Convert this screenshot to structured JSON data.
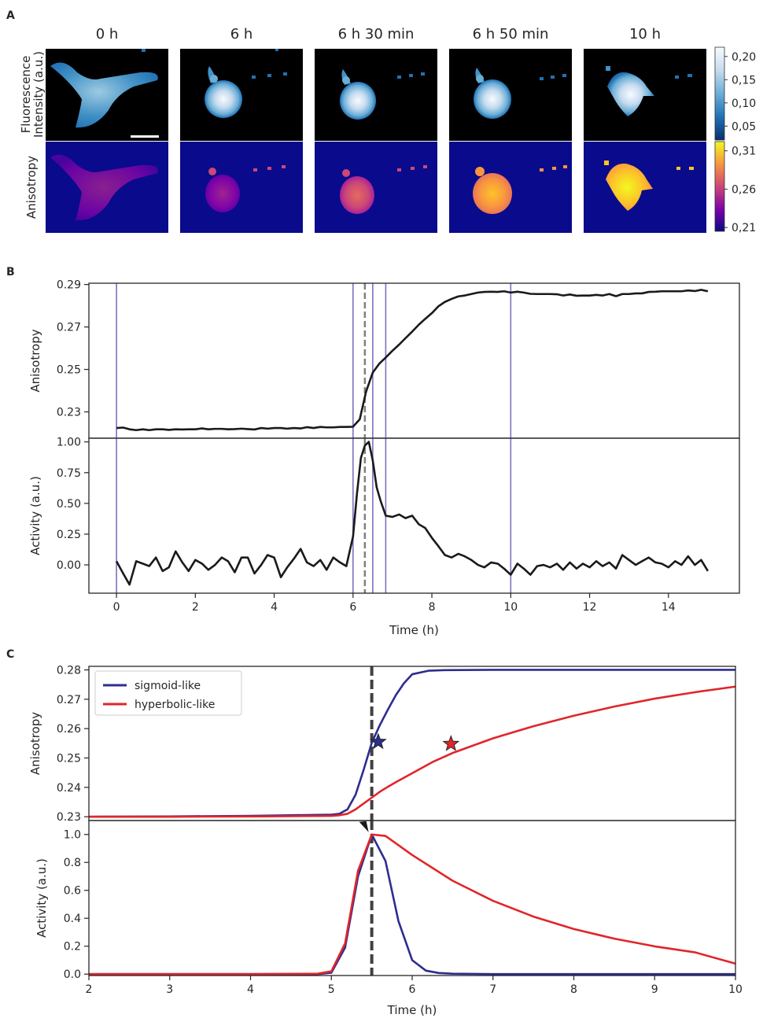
{
  "panels": {
    "a": "A",
    "b": "B",
    "c": "C"
  },
  "panel_a": {
    "time_labels": [
      "0 h",
      "6 h",
      "6 h 30 min",
      "6 h 50 min",
      "10 h"
    ],
    "row_labels": {
      "fluorescence": [
        "Fluorescence",
        "Intensity (a.u.)"
      ],
      "anisotropy": "Anisotropy"
    },
    "fluorescence_colorbar": {
      "ticks": [
        "0,20",
        "0,15",
        "0,10",
        "0,05"
      ],
      "values": [
        0.2,
        0.15,
        0.1,
        0.05
      ],
      "range": [
        0.02,
        0.22
      ],
      "colors": [
        "#08306b",
        "#2171b5",
        "#6baed6",
        "#c6dbef",
        "#f7fbff"
      ]
    },
    "anisotropy_colorbar": {
      "ticks": [
        "0,31",
        "0,26",
        "0,21"
      ],
      "values": [
        0.31,
        0.26,
        0.21
      ],
      "range": [
        0.205,
        0.322
      ],
      "colors": [
        "#0d0887",
        "#7e03a8",
        "#cc4778",
        "#f89540",
        "#f0f921"
      ]
    },
    "background_colors": {
      "fluorescence": "#000000",
      "anisotropy": "#0a0a8c"
    }
  },
  "chart_data": [
    {
      "id": "B-top",
      "type": "line",
      "ylabel": "Anisotropy",
      "xlim": [
        -0.7,
        15.8
      ],
      "ylim": [
        0.2176,
        0.2906
      ],
      "yticks": [
        0.23,
        0.25,
        0.27,
        0.29
      ],
      "ytick_labels": [
        "0.23",
        "0.25",
        "0.27",
        "0.29"
      ],
      "vlines": [
        0,
        6,
        6.5,
        6.83,
        10
      ],
      "dashed_vline": 6.3,
      "series": [
        {
          "color": "#1a1a1a",
          "x": [
            0,
            0.17,
            0.33,
            0.5,
            0.67,
            0.83,
            1,
            1.17,
            1.33,
            1.5,
            1.67,
            1.83,
            2,
            2.17,
            2.33,
            2.5,
            2.67,
            2.83,
            3,
            3.17,
            3.33,
            3.5,
            3.67,
            3.83,
            4,
            4.17,
            4.33,
            4.5,
            4.67,
            4.83,
            5,
            5.17,
            5.33,
            5.5,
            5.67,
            5.83,
            6,
            6.17,
            6.33,
            6.5,
            6.67,
            6.83,
            7,
            7.17,
            7.33,
            7.5,
            7.67,
            7.83,
            8,
            8.17,
            8.33,
            8.5,
            8.67,
            8.83,
            9,
            9.17,
            9.33,
            9.5,
            9.67,
            9.83,
            10,
            10.17,
            10.33,
            10.5,
            10.67,
            10.83,
            11,
            11.17,
            11.33,
            11.5,
            11.67,
            11.83,
            12,
            12.17,
            12.33,
            12.5,
            12.67,
            12.83,
            13,
            13.17,
            13.33,
            13.5,
            13.67,
            13.83,
            14,
            14.17,
            14.33,
            14.5,
            14.67,
            14.83,
            15
          ],
          "values": [
            0.2224,
            0.2226,
            0.2218,
            0.2214,
            0.2218,
            0.2214,
            0.2218,
            0.2218,
            0.2215,
            0.2218,
            0.2217,
            0.2218,
            0.2218,
            0.2222,
            0.2218,
            0.222,
            0.222,
            0.2218,
            0.2219,
            0.2221,
            0.2219,
            0.2217,
            0.2224,
            0.2221,
            0.2224,
            0.2224,
            0.2221,
            0.2224,
            0.2222,
            0.2228,
            0.2224,
            0.2229,
            0.2227,
            0.2227,
            0.2229,
            0.2229,
            0.223,
            0.2265,
            0.2395,
            0.2485,
            0.2528,
            0.2556,
            0.2588,
            0.2617,
            0.2647,
            0.2678,
            0.2711,
            0.2738,
            0.2765,
            0.2798,
            0.2818,
            0.2832,
            0.2844,
            0.2848,
            0.2855,
            0.2862,
            0.2865,
            0.2866,
            0.2865,
            0.2868,
            0.2862,
            0.2866,
            0.2862,
            0.2856,
            0.2855,
            0.2855,
            0.2855,
            0.2854,
            0.2848,
            0.2853,
            0.2847,
            0.2848,
            0.2848,
            0.2851,
            0.2848,
            0.2855,
            0.2845,
            0.2855,
            0.2855,
            0.2858,
            0.2858,
            0.2865,
            0.2866,
            0.2868,
            0.2868,
            0.2868,
            0.2868,
            0.2872,
            0.2869,
            0.2875,
            0.2868
          ]
        }
      ]
    },
    {
      "id": "B-bottom",
      "type": "line",
      "ylabel": "Activity (a.u.)",
      "xlabel": "Time (h)",
      "xlim": [
        -0.7,
        15.8
      ],
      "ylim": [
        -0.23,
        1.03
      ],
      "xticks": [
        0,
        2,
        4,
        6,
        8,
        10,
        12,
        14
      ],
      "xtick_labels": [
        "0",
        "2",
        "4",
        "6",
        "8",
        "10",
        "12",
        "14"
      ],
      "yticks": [
        0.0,
        0.25,
        0.5,
        0.75,
        1.0
      ],
      "ytick_labels": [
        "0.00",
        "0.25",
        "0.50",
        "0.75",
        "1.00"
      ],
      "vlines": [
        0,
        6,
        6.5,
        6.83,
        10
      ],
      "dashed_vline": 6.3,
      "series": [
        {
          "color": "#1a1a1a",
          "x": [
            0,
            0.17,
            0.33,
            0.5,
            0.67,
            0.83,
            1,
            1.17,
            1.33,
            1.5,
            1.67,
            1.83,
            2,
            2.17,
            2.33,
            2.5,
            2.67,
            2.83,
            3,
            3.17,
            3.33,
            3.5,
            3.67,
            3.83,
            4,
            4.17,
            4.33,
            4.5,
            4.67,
            4.83,
            5,
            5.17,
            5.33,
            5.5,
            5.67,
            5.83,
            6,
            6.1,
            6.2,
            6.3,
            6.4,
            6.5,
            6.6,
            6.7,
            6.83,
            7,
            7.17,
            7.33,
            7.5,
            7.67,
            7.83,
            8,
            8.17,
            8.33,
            8.5,
            8.67,
            8.83,
            9,
            9.17,
            9.33,
            9.5,
            9.67,
            9.83,
            10,
            10.17,
            10.33,
            10.5,
            10.67,
            10.83,
            11,
            11.17,
            11.33,
            11.5,
            11.67,
            11.83,
            12,
            12.17,
            12.33,
            12.5,
            12.67,
            12.83,
            13,
            13.17,
            13.33,
            13.5,
            13.67,
            13.83,
            14,
            14.17,
            14.33,
            14.5,
            14.67,
            14.83,
            15
          ],
          "values": [
            0.03,
            -0.07,
            -0.16,
            0.03,
            0.01,
            -0.01,
            0.06,
            -0.05,
            -0.02,
            0.11,
            0.02,
            -0.05,
            0.04,
            0.01,
            -0.04,
            0.0,
            0.06,
            0.03,
            -0.06,
            0.06,
            0.06,
            -0.07,
            0.0,
            0.08,
            0.06,
            -0.1,
            -0.02,
            0.05,
            0.13,
            0.02,
            -0.01,
            0.04,
            -0.04,
            0.06,
            0.02,
            -0.01,
            0.23,
            0.58,
            0.87,
            0.97,
            1.0,
            0.85,
            0.63,
            0.52,
            0.4,
            0.39,
            0.41,
            0.38,
            0.4,
            0.33,
            0.3,
            0.22,
            0.15,
            0.08,
            0.06,
            0.09,
            0.07,
            0.04,
            0.0,
            -0.02,
            0.02,
            0.01,
            -0.03,
            -0.08,
            0.01,
            -0.03,
            -0.08,
            -0.01,
            0.0,
            -0.02,
            0.01,
            -0.04,
            0.02,
            -0.03,
            0.01,
            -0.02,
            0.03,
            -0.01,
            0.02,
            -0.03,
            0.08,
            0.04,
            0.0,
            0.03,
            0.06,
            0.02,
            0.01,
            -0.02,
            0.03,
            0.0,
            0.07,
            0.0,
            0.04,
            -0.05
          ]
        }
      ]
    },
    {
      "id": "C-top",
      "type": "line",
      "ylabel": "Anisotropy",
      "xlim": [
        2,
        10
      ],
      "ylim": [
        0.2287,
        0.2812
      ],
      "yticks": [
        0.23,
        0.24,
        0.25,
        0.26,
        0.27,
        0.28
      ],
      "ytick_labels": [
        "0.23",
        "0.24",
        "0.25",
        "0.26",
        "0.27",
        "0.28"
      ],
      "dashed_vline": 5.5,
      "legend": {
        "position": "upper-left",
        "entries": [
          "sigmoid-like",
          "hyperbolic-like"
        ]
      },
      "series": [
        {
          "name": "sigmoid-like",
          "color": "#2d2d8f",
          "x": [
            2,
            3,
            4,
            4.5,
            5,
            5.1,
            5.2,
            5.3,
            5.4,
            5.5,
            5.6,
            5.7,
            5.8,
            5.9,
            6,
            6.2,
            6.4,
            7,
            8,
            9,
            10
          ],
          "values": [
            0.23,
            0.2301,
            0.2303,
            0.2305,
            0.2307,
            0.231,
            0.2325,
            0.2375,
            0.246,
            0.2552,
            0.2612,
            0.2665,
            0.2715,
            0.2755,
            0.2785,
            0.2797,
            0.2799,
            0.28,
            0.28,
            0.28,
            0.28
          ]
        },
        {
          "name": "hyperbolic-like",
          "color": "#e0262a",
          "x": [
            2,
            3,
            4,
            4.5,
            5,
            5.1,
            5.2,
            5.3,
            5.4,
            5.5,
            5.6,
            5.7,
            5.8,
            6,
            6.25,
            6.5,
            7,
            7.5,
            8,
            8.5,
            9,
            9.5,
            10
          ],
          "values": [
            0.23,
            0.23,
            0.2301,
            0.2302,
            0.2303,
            0.2305,
            0.231,
            0.2325,
            0.2345,
            0.2365,
            0.2385,
            0.2402,
            0.2418,
            0.2448,
            0.2486,
            0.2517,
            0.2567,
            0.2608,
            0.2644,
            0.2675,
            0.2702,
            0.2724,
            0.2743
          ]
        }
      ],
      "markers": [
        {
          "x": 5.58,
          "y": 0.2555,
          "color": "#2d2d8f",
          "shape": "star"
        },
        {
          "x": 6.48,
          "y": 0.2548,
          "color": "#e0262a",
          "shape": "star"
        }
      ]
    },
    {
      "id": "C-bottom",
      "type": "line",
      "ylabel": "Activity (a.u.)",
      "xlabel": "Time (h)",
      "xlim": [
        2,
        10
      ],
      "ylim": [
        -0.01,
        1.1
      ],
      "xticks": [
        2,
        3,
        4,
        5,
        6,
        7,
        8,
        9,
        10
      ],
      "xtick_labels": [
        "2",
        "3",
        "4",
        "5",
        "6",
        "7",
        "8",
        "9",
        "10"
      ],
      "yticks": [
        0.0,
        0.2,
        0.4,
        0.6,
        0.8,
        1.0
      ],
      "ytick_labels": [
        "0.0",
        "0.2",
        "0.4",
        "0.6",
        "0.8",
        "1.0"
      ],
      "dashed_vline": 5.5,
      "series": [
        {
          "name": "sigmoid-like",
          "color": "#2d2d8f",
          "x": [
            2,
            3,
            4,
            4.83,
            5,
            5.17,
            5.33,
            5.5,
            5.67,
            5.83,
            6,
            6.17,
            6.33,
            6.5,
            7,
            8,
            9,
            10
          ],
          "values": [
            0,
            0,
            0,
            0,
            0.01,
            0.19,
            0.7,
            1.0,
            0.81,
            0.38,
            0.1,
            0.025,
            0.008,
            0.003,
            0,
            0,
            0,
            0
          ]
        },
        {
          "name": "hyperbolic-like",
          "color": "#e0262a",
          "x": [
            2,
            3,
            4,
            4.83,
            5,
            5.17,
            5.33,
            5.5,
            5.67,
            6,
            6.5,
            7,
            7.5,
            8,
            8.5,
            9,
            9.5,
            10
          ],
          "values": [
            0,
            0,
            0,
            0.003,
            0.02,
            0.22,
            0.74,
            1.0,
            0.99,
            0.853,
            0.669,
            0.525,
            0.412,
            0.323,
            0.254,
            0.199,
            0.156,
            0.075
          ]
        }
      ],
      "annotations": [
        {
          "type": "arrow",
          "x": 5.5,
          "y": 1.0,
          "color": "#1a1a1a"
        }
      ]
    }
  ]
}
